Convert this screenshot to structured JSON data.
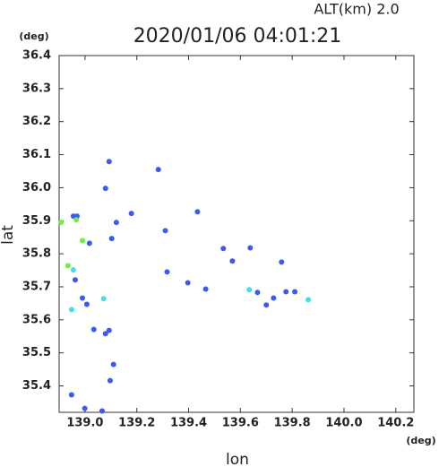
{
  "chart_data": {
    "type": "scatter",
    "title": "2020/01/06 04:01:21",
    "subtitle": "ALT(km) 2.0",
    "x_label": "lon",
    "y_label": "lat",
    "x_unit": "(deg)",
    "y_unit": "(deg)",
    "xlim": [
      138.9,
      140.27
    ],
    "ylim": [
      35.32,
      36.4
    ],
    "xticks": [
      {
        "value": 139.0,
        "label": "139.0"
      },
      139.2,
      139.4,
      139.6,
      139.8,
      {
        "value": 140.0,
        "label": "140.0"
      },
      140.2
    ],
    "yticks": [
      35.4,
      35.5,
      35.6,
      35.7,
      35.8,
      35.9,
      {
        "value": 36.0,
        "label": "36.0"
      },
      36.1,
      36.2,
      36.3,
      36.4
    ],
    "series": [
      {
        "color": "#3a5af0",
        "x": [
          139.093,
          139.079,
          138.955,
          138.969,
          139.017,
          139.103,
          138.962,
          138.99,
          139.007,
          139.034,
          139.079,
          139.093,
          139.11,
          139.097,
          138.948,
          138.999,
          139.066,
          139.283,
          139.179,
          139.31,
          139.434,
          139.397,
          139.466,
          139.569,
          139.638,
          139.759,
          139.666,
          139.7,
          139.728,
          139.776,
          139.81,
          139.534,
          139.317,
          139.121
        ],
        "values": [
          36.079,
          35.998,
          35.914,
          35.914,
          35.832,
          35.846,
          35.721,
          35.666,
          35.647,
          35.571,
          35.558,
          35.568,
          35.465,
          35.416,
          35.373,
          35.332,
          35.324,
          36.055,
          35.922,
          35.87,
          35.927,
          35.712,
          35.693,
          35.778,
          35.818,
          35.775,
          35.683,
          35.645,
          35.666,
          35.685,
          35.685,
          35.816,
          35.745,
          35.895
        ]
      },
      {
        "color": "#40e0e8",
        "x": [
          138.955,
          138.948,
          139.072,
          139.634,
          139.862
        ],
        "values": [
          35.751,
          35.631,
          35.664,
          35.691,
          35.661
        ]
      },
      {
        "color": "#70ee40",
        "x": [
          138.934,
          138.99,
          138.907,
          138.966
        ],
        "values": [
          35.764,
          35.84,
          35.895,
          35.903
        ]
      }
    ]
  }
}
